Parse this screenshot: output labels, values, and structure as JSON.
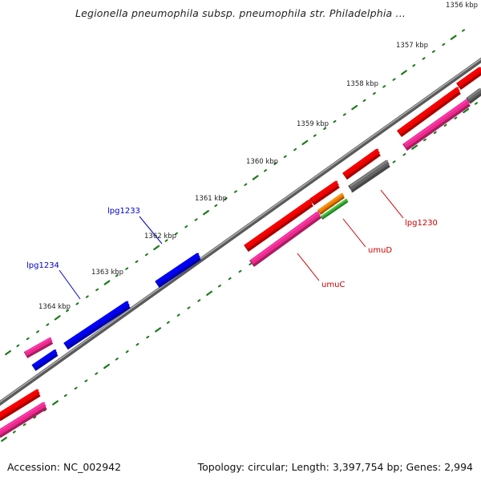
{
  "title": "Legionella pneumophila subsp. pneumophila str. Philadelphia ...",
  "footer": {
    "accession": "Accession: NC_002942",
    "summary": "Topology: circular; Length: 3,397,754 bp; Genes: 2,994"
  },
  "ruler_labels": [
    "1356 kbp",
    "1357 kbp",
    "1358 kbp",
    "1359 kbp",
    "1360 kbp",
    "1361 kbp",
    "1362 kbp",
    "1363 kbp",
    "1364 kbp"
  ],
  "gene_labels": [
    {
      "text": "lpg1234",
      "color": "#0000cc"
    },
    {
      "text": "lpg1233",
      "color": "#0000cc"
    },
    {
      "text": "umuC",
      "color": "#cc0000"
    },
    {
      "text": "umuD",
      "color": "#cc0000"
    },
    {
      "text": "lpg1230",
      "color": "#cc0000"
    }
  ],
  "colors": {
    "backbone": "#7f7f7f",
    "tick": "#1a7a1a",
    "blue_gene": "#0000ee",
    "red_gene": "#ee0000",
    "pink_gene": "#ee2a8a",
    "gray_gene": "#666666",
    "orange_gene": "#f07800",
    "green_gene": "#33aa33"
  }
}
